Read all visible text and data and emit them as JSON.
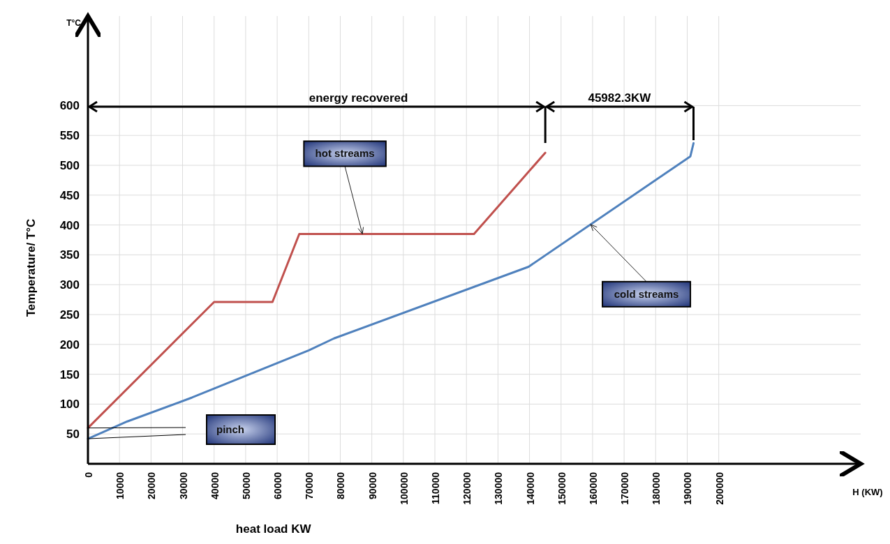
{
  "chart_data": {
    "type": "line",
    "xlabel": "heat load KW",
    "ylabel": "Temperature/ T°C",
    "xlim": [
      0,
      245000
    ],
    "xticks": [
      0,
      10000,
      20000,
      30000,
      40000,
      50000,
      60000,
      70000,
      80000,
      90000,
      100000,
      110000,
      120000,
      130000,
      140000,
      150000,
      160000,
      170000,
      180000,
      190000,
      200000
    ],
    "ylim": [
      0,
      750
    ],
    "yticks": [
      50,
      100,
      150,
      200,
      250,
      300,
      350,
      400,
      450,
      500,
      550,
      600
    ],
    "grid": true,
    "marker": "none",
    "line_style": "solid",
    "series": [
      {
        "name": "hot streams",
        "color": "#c0504d",
        "x": [
          0,
          40000,
          58500,
          67000,
          122400,
          145000
        ],
        "values": [
          60,
          271,
          271,
          385,
          385,
          521
        ]
      },
      {
        "name": "cold streams",
        "color": "#4f81bd",
        "x": [
          0,
          12500,
          33000,
          70000,
          78000,
          139700,
          191000,
          192000
        ],
        "values": [
          42,
          71,
          111,
          190,
          210,
          330,
          515,
          537
        ]
      }
    ],
    "annotations": [
      "T°C",
      "H (KW)",
      "energy recovered",
      "45982.3KW",
      "pinch"
    ]
  }
}
